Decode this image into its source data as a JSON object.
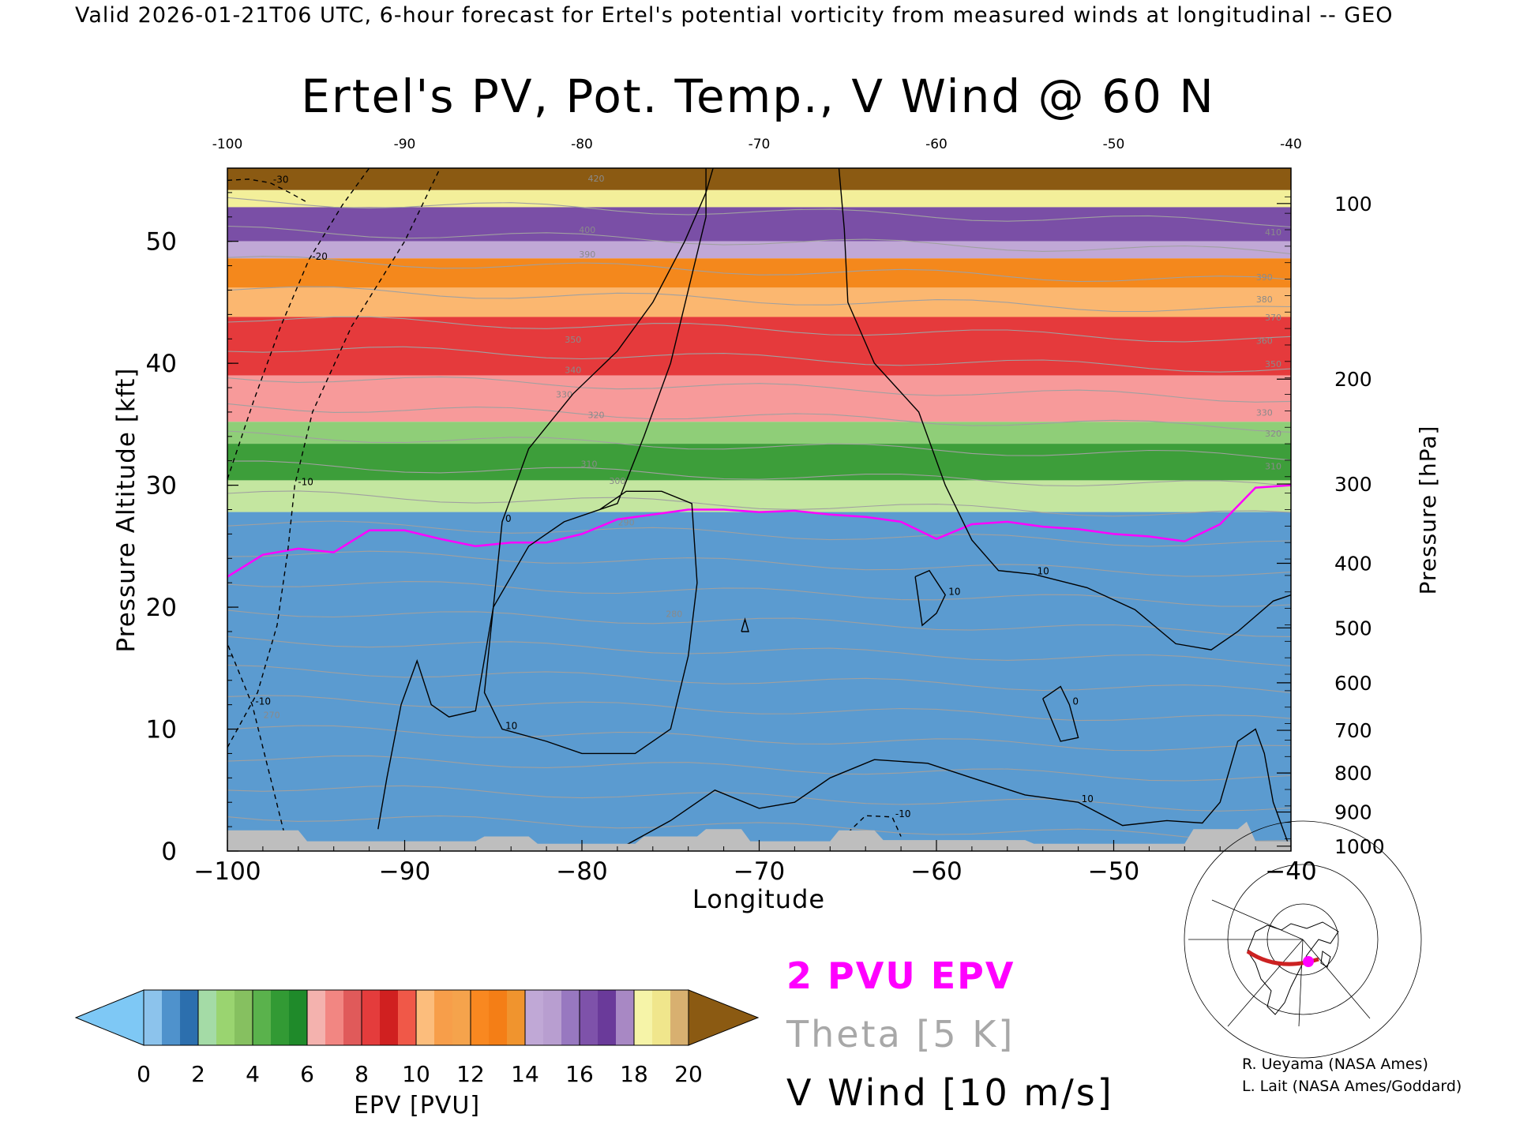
{
  "header": {
    "line": "Valid 2026-01-21T06 UTC, 6-hour forecast for Ertel's potential vorticity from measured winds at longitudinal -- GEO"
  },
  "chart_data": {
    "type": "heatmap",
    "title": "Ertel's PV, Pot. Temp., V Wind @ 60 N",
    "xlabel": "Longitude",
    "ylabel": "Pressure Altitude [kft]",
    "y2label": "Pressure [hPa]",
    "xlim": [
      -100,
      -40
    ],
    "ylim": [
      0,
      56
    ],
    "xticks": [
      "-100",
      "-90",
      "-80",
      "-70",
      "-60",
      "-50",
      "-40"
    ],
    "xticks_top": [
      "-100",
      "-90",
      "-80",
      "-70",
      "-60",
      "-50",
      "-40"
    ],
    "yticks": [
      "0",
      "10",
      "20",
      "30",
      "40",
      "50"
    ],
    "pressure_ticks": [
      {
        "label": "100",
        "kft": 53.1
      },
      {
        "label": "200",
        "kft": 38.7
      },
      {
        "label": "300",
        "kft": 30.1
      },
      {
        "label": "400",
        "kft": 23.6
      },
      {
        "label": "500",
        "kft": 18.3
      },
      {
        "label": "600",
        "kft": 13.8
      },
      {
        "label": "700",
        "kft": 9.9
      },
      {
        "label": "800",
        "kft": 6.4
      },
      {
        "label": "900",
        "kft": 3.2
      },
      {
        "label": "1000",
        "kft": 0.4
      }
    ],
    "pv_layers": [
      {
        "pvu": 20,
        "top_kft": 56,
        "bottom_kft": 54.2,
        "color": "#8b5a12"
      },
      {
        "pvu": 18,
        "top_kft": 54.2,
        "bottom_kft": 52.8,
        "color": "#f3ef9a"
      },
      {
        "pvu": 16,
        "top_kft": 52.8,
        "bottom_kft": 50.0,
        "color": "#7a4fa6"
      },
      {
        "pvu": 14,
        "top_kft": 50.0,
        "bottom_kft": 48.6,
        "color": "#c0a8d6"
      },
      {
        "pvu": 12,
        "top_kft": 48.6,
        "bottom_kft": 46.2,
        "color": "#f4881c"
      },
      {
        "pvu": 10,
        "top_kft": 46.2,
        "bottom_kft": 43.8,
        "color": "#fbb770"
      },
      {
        "pvu": 9,
        "top_kft": 43.8,
        "bottom_kft": 39.0,
        "color": "#e53a3c"
      },
      {
        "pvu": 7,
        "top_kft": 39.0,
        "bottom_kft": 35.2,
        "color": "#f79a9a"
      },
      {
        "pvu": 6,
        "top_kft": 35.2,
        "bottom_kft": 33.4,
        "color": "#8fce78"
      },
      {
        "pvu": 5,
        "top_kft": 33.4,
        "bottom_kft": 30.4,
        "color": "#3d9e3a"
      },
      {
        "pvu": 3,
        "top_kft": 30.4,
        "bottom_kft": 27.8,
        "color": "#c4e6a0"
      },
      {
        "pvu": 1,
        "top_kft": 27.8,
        "bottom_kft": 0,
        "color": "#5b9bd0"
      }
    ],
    "pv2_contour": {
      "label": "2 PVU EPV",
      "color": "#ff00ff",
      "points": [
        [
          -100,
          22.5
        ],
        [
          -98,
          24.3
        ],
        [
          -96,
          24.8
        ],
        [
          -94,
          24.5
        ],
        [
          -92,
          26.3
        ],
        [
          -90,
          26.3
        ],
        [
          -88,
          25.6
        ],
        [
          -86,
          25.0
        ],
        [
          -84,
          25.3
        ],
        [
          -82,
          25.3
        ],
        [
          -80,
          26.0
        ],
        [
          -78,
          27.2
        ],
        [
          -76,
          27.6
        ],
        [
          -74,
          28.0
        ],
        [
          -72,
          28.0
        ],
        [
          -70,
          27.8
        ],
        [
          -68,
          27.9
        ],
        [
          -66,
          27.6
        ],
        [
          -64,
          27.4
        ],
        [
          -62,
          27.0
        ],
        [
          -60,
          25.6
        ],
        [
          -58,
          26.8
        ],
        [
          -56,
          27.0
        ],
        [
          -54,
          26.6
        ],
        [
          -52,
          26.4
        ],
        [
          -50,
          26.0
        ],
        [
          -48,
          25.8
        ],
        [
          -46,
          25.4
        ],
        [
          -44,
          26.8
        ],
        [
          -42,
          29.8
        ],
        [
          -40,
          30.0
        ]
      ]
    },
    "theta_levels": {
      "label": "Theta [5 K]",
      "color": "#a0a0a0",
      "labels": [
        {
          "text": "270",
          "lon": -97.5,
          "kft": 10.9
        },
        {
          "text": "280",
          "lon": -74.8,
          "kft": 19.2
        },
        {
          "text": "290",
          "lon": -77.5,
          "kft": 26.7
        },
        {
          "text": "300",
          "lon": -78.0,
          "kft": 30.1
        },
        {
          "text": "310",
          "lon": -79.6,
          "kft": 31.5
        },
        {
          "text": "320",
          "lon": -79.2,
          "kft": 35.5
        },
        {
          "text": "330",
          "lon": -81.0,
          "kft": 37.2
        },
        {
          "text": "340",
          "lon": -80.5,
          "kft": 39.2
        },
        {
          "text": "350",
          "lon": -80.5,
          "kft": 41.7
        },
        {
          "text": "390",
          "lon": -79.7,
          "kft": 48.7
        },
        {
          "text": "400",
          "lon": -79.7,
          "kft": 50.7
        },
        {
          "text": "420",
          "lon": -79.2,
          "kft": 54.9
        },
        {
          "text": "310",
          "lon": -41.0,
          "kft": 31.3
        },
        {
          "text": "320",
          "lon": -41.0,
          "kft": 34.0
        },
        {
          "text": "330",
          "lon": -41.5,
          "kft": 35.7
        },
        {
          "text": "350",
          "lon": -41.0,
          "kft": 39.7
        },
        {
          "text": "360",
          "lon": -41.5,
          "kft": 41.6
        },
        {
          "text": "370",
          "lon": -41.0,
          "kft": 43.5
        },
        {
          "text": "380",
          "lon": -41.5,
          "kft": 45.0
        },
        {
          "text": "390",
          "lon": -41.5,
          "kft": 46.8
        },
        {
          "text": "410",
          "lon": -41.0,
          "kft": 50.5
        }
      ]
    },
    "v_wind": {
      "label": "V Wind [10 m/s]",
      "color": "#000000",
      "contours": [
        {
          "value": "-30",
          "dashed": true,
          "points": [
            [
              -100,
              55.0
            ],
            [
              -98.8,
              55.1
            ],
            [
              -97.6,
              54.8
            ],
            [
              -96.5,
              54.0
            ],
            [
              -95.5,
              53.2
            ]
          ]
        },
        {
          "value": "-20",
          "dashed": true,
          "points": [
            [
              -100,
              30.5
            ],
            [
              -98.5,
              37.0
            ],
            [
              -97.0,
              43.0
            ],
            [
              -95.4,
              48.5
            ],
            [
              -93.5,
              53.0
            ],
            [
              -92,
              56
            ]
          ]
        },
        {
          "value": "-10",
          "dashed": true,
          "points": [
            [
              -100,
              8.5
            ],
            [
              -98.3,
              13.0
            ],
            [
              -97.2,
              18.5
            ],
            [
              -96.6,
              24.5
            ],
            [
              -96.2,
              30.0
            ],
            [
              -95.2,
              36.0
            ],
            [
              -93.0,
              43.0
            ],
            [
              -90.0,
              50.0
            ],
            [
              -88.0,
              56.0
            ]
          ]
        },
        {
          "value": "-10",
          "dashed": true,
          "points": [
            [
              -96.8,
              1.5
            ],
            [
              -97.4,
              5.0
            ],
            [
              -98.6,
              12.0
            ],
            [
              -100,
              17.0
            ]
          ]
        },
        {
          "value": "0",
          "dashed": false,
          "points": [
            [
              -91.5,
              1.8
            ],
            [
              -91.0,
              6.0
            ],
            [
              -90.2,
              12.0
            ],
            [
              -89.3,
              15.6
            ],
            [
              -88.5,
              12.0
            ],
            [
              -87.5,
              11.0
            ],
            [
              -86.0,
              11.5
            ],
            [
              -85.0,
              20.0
            ],
            [
              -84.5,
              27.0
            ],
            [
              -83.0,
              33.0
            ],
            [
              -80.5,
              37.5
            ],
            [
              -78.0,
              41.0
            ],
            [
              -76.0,
              45.0
            ],
            [
              -74.2,
              50.0
            ],
            [
              -73.0,
              54.0
            ],
            [
              -72.6,
              56.0
            ]
          ]
        },
        {
          "value": "10",
          "dashed": false,
          "points": [
            [
              -77.5,
              0.5
            ],
            [
              -75.0,
              2.5
            ],
            [
              -72.5,
              5.0
            ],
            [
              -70.0,
              3.5
            ],
            [
              -68.0,
              4.0
            ],
            [
              -66.0,
              6.0
            ],
            [
              -63.5,
              7.5
            ],
            [
              -60.5,
              7.2
            ],
            [
              -58.0,
              6.0
            ],
            [
              -55.0,
              4.6
            ],
            [
              -52.0,
              4.0
            ],
            [
              -49.5,
              2.1
            ],
            [
              -47.0,
              2.5
            ],
            [
              -45.0,
              2.3
            ],
            [
              -44.0,
              4.0
            ],
            [
              -43.0,
              9.0
            ],
            [
              -42.0,
              10.0
            ],
            [
              -41.5,
              8.0
            ],
            [
              -41.0,
              4.0
            ],
            [
              -40.0,
              0.0
            ]
          ]
        },
        {
          "value": "10",
          "dashed": false,
          "points": [
            [
              -65.5,
              56.0
            ],
            [
              -65.2,
              51.0
            ],
            [
              -65.0,
              45.0
            ],
            [
              -63.5,
              40.0
            ],
            [
              -61.0,
              36.0
            ],
            [
              -59.5,
              30.0
            ],
            [
              -58.0,
              25.5
            ],
            [
              -56.5,
              23.0
            ],
            [
              -54.5,
              22.7
            ],
            [
              -51.5,
              21.6
            ],
            [
              -48.8,
              19.8
            ],
            [
              -46.5,
              17.0
            ],
            [
              -44.5,
              16.5
            ],
            [
              -43.0,
              18.0
            ],
            [
              -41.0,
              20.5
            ],
            [
              -40.0,
              21.0
            ]
          ]
        },
        {
          "value": "10",
          "dashed": false,
          "points": [
            [
              -73.0,
              56.0
            ],
            [
              -73.0,
              52.0
            ],
            [
              -74.0,
              46.0
            ],
            [
              -75.0,
              40.0
            ],
            [
              -76.5,
              34.0
            ],
            [
              -78.0,
              28.5
            ],
            [
              -81.0,
              27.0
            ],
            [
              -83.0,
              25.0
            ],
            [
              -85.0,
              20.0
            ],
            [
              -85.5,
              13.0
            ],
            [
              -84.5,
              10.0
            ],
            [
              -82.0,
              9.0
            ],
            [
              -80.0,
              8.0
            ],
            [
              -77.0,
              8.0
            ],
            [
              -75.0,
              10.0
            ],
            [
              -74.0,
              16.0
            ],
            [
              -73.5,
              22.0
            ],
            [
              -73.8,
              28.5
            ],
            [
              -75.5,
              29.5
            ],
            [
              -77.5,
              29.5
            ],
            [
              -79.0,
              28.0
            ]
          ]
        },
        {
          "value": "-10",
          "dashed": true,
          "points": [
            [
              -65.0,
              1.5
            ],
            [
              -64.0,
              2.9
            ],
            [
              -62.5,
              2.8
            ],
            [
              -62.0,
              1.2
            ]
          ]
        },
        {
          "value": "10",
          "dashed": false,
          "points": [
            [
              -61.2,
              22.5
            ],
            [
              -60.8,
              18.5
            ],
            [
              -60.0,
              19.5
            ],
            [
              -59.5,
              21.0
            ],
            [
              -60.4,
              23.0
            ],
            [
              -61.2,
              22.5
            ]
          ]
        },
        {
          "value": "0",
          "dashed": false,
          "points": [
            [
              -54.0,
              12.5
            ],
            [
              -53.0,
              9.0
            ],
            [
              -52.0,
              9.3
            ],
            [
              -52.5,
              12.0
            ],
            [
              -53.0,
              13.5
            ],
            [
              -54.0,
              12.5
            ]
          ]
        },
        {
          "value": "",
          "dashed": false,
          "points": [
            [
              -71.0,
              18.0
            ],
            [
              -70.8,
              19.0
            ],
            [
              -70.6,
              18.0
            ],
            [
              -71.0,
              18.0
            ]
          ]
        }
      ]
    },
    "surface_color": "#bebebe",
    "colorbar": {
      "label": "EPV [PVU]",
      "ticks": [
        "0",
        "2",
        "4",
        "6",
        "8",
        "10",
        "12",
        "14",
        "16",
        "18",
        "20"
      ],
      "underflow_color": "#7ec8f5",
      "overflow_color": "#8b5a12",
      "segments": [
        [
          "#8cc3ec",
          "#4f92cc",
          "#2c6fae"
        ],
        [
          "#a4dba6",
          "#9ad470",
          "#86c060"
        ],
        [
          "#5ab24c",
          "#329a34",
          "#1f8a2a"
        ],
        [
          "#f4b2ae",
          "#f28682",
          "#e05a5a"
        ],
        [
          "#e43c3c",
          "#d02020",
          "#f05848"
        ],
        [
          "#fcbd7c",
          "#f79e4a",
          "#f5a34c"
        ],
        [
          "#f98820",
          "#f47e16",
          "#f0942e"
        ],
        [
          "#c0a8d6",
          "#b89ed0",
          "#9878c0"
        ],
        [
          "#7e52aa",
          "#6a3a9a",
          "#a888c4"
        ],
        [
          "#f6f4a8",
          "#f0e68c",
          "#d8b070"
        ]
      ]
    },
    "legend": {
      "pv2": "2 PVU EPV",
      "theta": "Theta [5 K]",
      "vwind": "V Wind [10 m/s]"
    },
    "credits": [
      "R. Ueyama (NASA Ames)",
      "L. Lait (NASA Ames/Goddard)"
    ],
    "inset_map": {
      "description_icon": "polar-map-icon",
      "track_color": "#cc2222",
      "marker_color": "#ff00ff"
    }
  }
}
